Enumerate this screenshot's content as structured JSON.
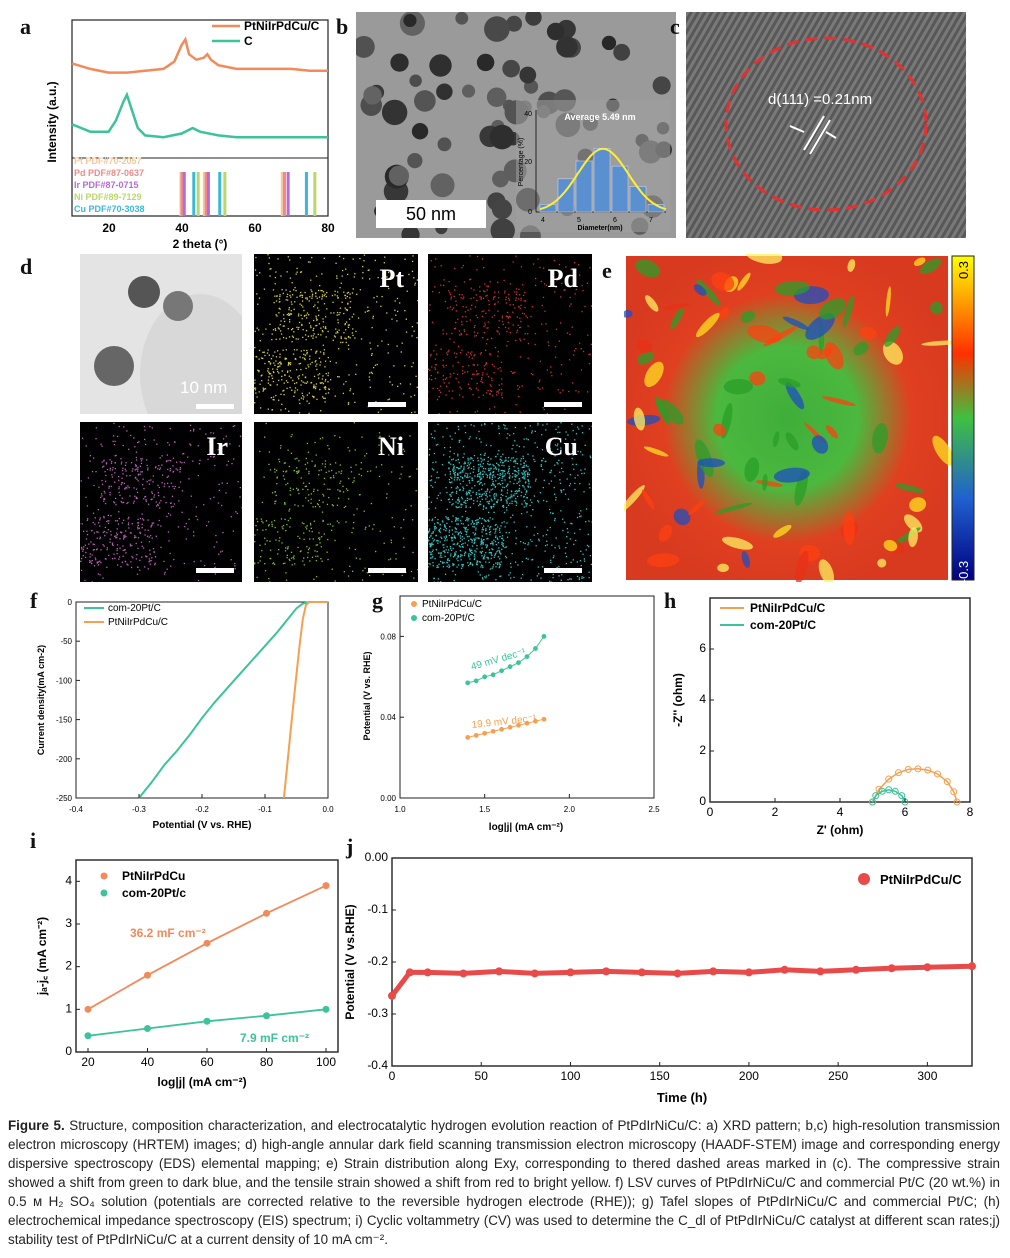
{
  "panels": {
    "a": {
      "letter": "a",
      "legend": [
        "PtNiIrPdCu/C",
        "C"
      ],
      "ylabel": "Intensity (a.u.)",
      "xlabel": "2 theta (°)",
      "xticks": [
        "20",
        "40",
        "60",
        "80"
      ],
      "pdf_refs": [
        {
          "label": "Pt PDF#70-2057",
          "color": "#f5c89a"
        },
        {
          "label": "Pd PDF#87-0637",
          "color": "#f08a8a"
        },
        {
          "label": "Ir PDF#87-0715",
          "color": "#b56ad8"
        },
        {
          "label": "Ni PDF#89-7129",
          "color": "#b8d86a"
        },
        {
          "label": "Cu PDF#70-3038",
          "color": "#3ab8d8"
        }
      ]
    },
    "b": {
      "letter": "b",
      "scale": "50 nm",
      "inset_title": "Average 5.49 nm",
      "inset_xlabel": "Diameter(nm)",
      "inset_ylabel": "Percentage (%)",
      "inset_xticks": [
        "4",
        "5",
        "6",
        "7"
      ],
      "inset_yticks": [
        "0",
        "20",
        "40"
      ]
    },
    "c": {
      "letter": "c",
      "annotation": "d(111) =0.21nm"
    },
    "d": {
      "letter": "d",
      "scale": "10 nm",
      "elements": [
        "Pt",
        "Pd",
        "Ir",
        "Ni",
        "Cu"
      ]
    },
    "e": {
      "letter": "e",
      "cbar_top": "0.3",
      "cbar_bottom": "-0.3"
    },
    "f": {
      "letter": "f",
      "legend": [
        "com-20Pt/C",
        "PtNiIrPdCu/C"
      ],
      "xlabel": "Potential (V vs. RHE)",
      "ylabel": "Current density(mA cm-2)",
      "xticks": [
        "-0.4",
        "-0.3",
        "-0.2",
        "-0.1",
        "0.0"
      ],
      "yticks": [
        "0",
        "-50",
        "-100",
        "-150",
        "-200",
        "-250"
      ]
    },
    "g": {
      "letter": "g",
      "legend": [
        "PtNiIrPdCu/C",
        "com-20Pt/C"
      ],
      "xlabel": "log|j| (mA cm⁻²)",
      "ylabel": "Potential (V vs. RHE)",
      "xticks": [
        "1.0",
        "1.5",
        "2.0",
        "2.5"
      ],
      "yticks": [
        "0.00",
        "0.04",
        "0.08"
      ],
      "slope1": "49 mV dec⁻¹",
      "slope2": "19.9 mV dec⁻¹"
    },
    "h": {
      "letter": "h",
      "legend": [
        "PtNiIrPdCu/C",
        "com-20Pt/C"
      ],
      "xlabel": "Z' (ohm)",
      "ylabel": "-Z'' (ohm)",
      "xticks": [
        "0",
        "2",
        "4",
        "6",
        "8"
      ],
      "yticks": [
        "0",
        "2",
        "4",
        "6"
      ]
    },
    "i": {
      "letter": "i",
      "legend": [
        "PtNiIrPdCu",
        "com-20Pt/c"
      ],
      "xlabel": "log|j| (mA cm⁻²)",
      "ylabel": "jₐ-j꜀ (mA cm⁻²)",
      "xticks": [
        "20",
        "40",
        "60",
        "80",
        "100"
      ],
      "yticks": [
        "0",
        "1",
        "2",
        "3",
        "4"
      ],
      "cap1": "36.2 mF cm⁻²",
      "cap2": "7.9 mF cm⁻²"
    },
    "j": {
      "letter": "j",
      "legend": [
        "PtNiIrPdCu/C"
      ],
      "xlabel": "Time (h)",
      "ylabel": "Potential (V vs.RHE)",
      "xticks": [
        "0",
        "50",
        "100",
        "150",
        "200",
        "250",
        "300"
      ],
      "yticks": [
        "0.00",
        "-0.1",
        "-0.2",
        "-0.3",
        "-0.4"
      ]
    }
  },
  "chart_data": [
    {
      "panel": "a",
      "type": "line",
      "title": "XRD pattern",
      "xlabel": "2 theta (°)",
      "ylabel": "Intensity (a.u.)",
      "xlim": [
        10,
        80
      ],
      "series": [
        {
          "name": "PtNiIrPdCu/C",
          "color": "#f28a5a",
          "x": [
            10,
            15,
            20,
            25,
            30,
            35,
            38,
            40,
            41,
            42,
            44,
            46,
            47,
            48,
            50,
            55,
            60,
            65,
            70,
            75,
            80
          ],
          "y": [
            0.83,
            0.8,
            0.78,
            0.78,
            0.79,
            0.8,
            0.84,
            0.93,
            0.96,
            0.88,
            0.85,
            0.86,
            0.88,
            0.85,
            0.82,
            0.8,
            0.8,
            0.8,
            0.8,
            0.79,
            0.79
          ]
        },
        {
          "name": "C",
          "color": "#3cc39a",
          "x": [
            10,
            15,
            20,
            22,
            24,
            25,
            26,
            28,
            30,
            35,
            40,
            43,
            45,
            50,
            55,
            60,
            65,
            70,
            75,
            80
          ],
          "y": [
            0.5,
            0.46,
            0.46,
            0.52,
            0.62,
            0.66,
            0.6,
            0.48,
            0.44,
            0.43,
            0.45,
            0.48,
            0.46,
            0.44,
            0.43,
            0.43,
            0.43,
            0.43,
            0.43,
            0.43
          ]
        }
      ],
      "reference_lines": [
        {
          "name": "Pt",
          "color": "#f5c89a",
          "positions": [
            39.8,
            46.2,
            67.5,
            81.3
          ]
        },
        {
          "name": "Pd",
          "color": "#f08a8a",
          "positions": [
            40.1,
            46.7,
            68.1,
            82.1
          ]
        },
        {
          "name": "Ir",
          "color": "#b56ad8",
          "positions": [
            40.7,
            47.3,
            69.1
          ]
        },
        {
          "name": "Ni",
          "color": "#b8d86a",
          "positions": [
            44.5,
            51.8,
            76.4
          ]
        },
        {
          "name": "Cu",
          "color": "#3ab8d8",
          "positions": [
            43.3,
            50.4,
            74.1
          ]
        }
      ]
    },
    {
      "panel": "b-inset",
      "type": "bar",
      "title": "Average 5.49 nm",
      "xlabel": "Diameter(nm)",
      "ylabel": "Percentage (%)",
      "categories": [
        "4.0",
        "4.5",
        "5.0",
        "5.5",
        "6.0",
        "6.5",
        "7.0"
      ],
      "values": [
        3,
        13,
        20,
        25,
        18,
        10,
        3
      ],
      "ylim": [
        0,
        40
      ]
    },
    {
      "panel": "f",
      "type": "line",
      "title": "LSV",
      "xlabel": "Potential (V vs. RHE)",
      "ylabel": "Current density(mA cm-2)",
      "xlim": [
        -0.4,
        0.0
      ],
      "ylim": [
        -250,
        0
      ],
      "series": [
        {
          "name": "com-20Pt/C",
          "color": "#3cc39a",
          "x": [
            -0.3,
            -0.28,
            -0.26,
            -0.24,
            -0.22,
            -0.2,
            -0.18,
            -0.16,
            -0.14,
            -0.12,
            -0.1,
            -0.08,
            -0.06,
            -0.05,
            -0.04,
            -0.03,
            0.0
          ],
          "y": [
            -250,
            -230,
            -208,
            -190,
            -170,
            -148,
            -128,
            -110,
            -92,
            -74,
            -56,
            -38,
            -18,
            -8,
            -2,
            0,
            0
          ]
        },
        {
          "name": "PtNiIrPdCu/C",
          "color": "#f5a050",
          "x": [
            -0.07,
            -0.065,
            -0.06,
            -0.055,
            -0.05,
            -0.045,
            -0.04,
            -0.035,
            -0.03,
            0.0
          ],
          "y": [
            -250,
            -210,
            -170,
            -130,
            -92,
            -55,
            -22,
            -4,
            0,
            0
          ]
        }
      ]
    },
    {
      "panel": "g",
      "type": "scatter",
      "title": "Tafel slopes",
      "xlabel": "log|j| (mA cm⁻²)",
      "ylabel": "Potential (V vs. RHE)",
      "xlim": [
        1.0,
        2.5
      ],
      "ylim": [
        0.0,
        0.1
      ],
      "series": [
        {
          "name": "PtNiIrPdCu/C",
          "color": "#f5a050",
          "x": [
            1.4,
            1.45,
            1.5,
            1.55,
            1.6,
            1.65,
            1.7,
            1.75,
            1.8,
            1.85
          ],
          "y": [
            0.03,
            0.031,
            0.032,
            0.033,
            0.034,
            0.035,
            0.036,
            0.037,
            0.038,
            0.039
          ]
        },
        {
          "name": "com-20Pt/C",
          "color": "#3cc39a",
          "x": [
            1.4,
            1.45,
            1.5,
            1.55,
            1.6,
            1.65,
            1.7,
            1.75,
            1.8,
            1.85
          ],
          "y": [
            0.057,
            0.058,
            0.06,
            0.061,
            0.063,
            0.065,
            0.067,
            0.07,
            0.074,
            0.08
          ]
        }
      ]
    },
    {
      "panel": "h",
      "type": "scatter",
      "title": "EIS",
      "xlabel": "Z' (ohm)",
      "ylabel": "-Z'' (ohm)",
      "xlim": [
        0,
        8
      ],
      "ylim": [
        0,
        8
      ],
      "series": [
        {
          "name": "PtNiIrPdCu/C",
          "color": "#f5a050",
          "x": [
            5.0,
            5.2,
            5.5,
            5.8,
            6.1,
            6.4,
            6.7,
            7.0,
            7.3,
            7.5,
            7.6
          ],
          "y": [
            0.0,
            0.5,
            0.9,
            1.15,
            1.28,
            1.3,
            1.25,
            1.1,
            0.8,
            0.4,
            0.0
          ]
        },
        {
          "name": "com-20Pt/C",
          "color": "#3cc39a",
          "x": [
            5.0,
            5.1,
            5.3,
            5.5,
            5.7,
            5.9,
            6.0
          ],
          "y": [
            0.0,
            0.25,
            0.42,
            0.48,
            0.42,
            0.25,
            0.0
          ]
        }
      ]
    },
    {
      "panel": "i",
      "type": "line",
      "title": "CV capacitance",
      "xlabel": "log|j| (mA cm⁻²)",
      "ylabel": "jₐ-j꜀ (mA cm⁻²)",
      "xlim": [
        20,
        100
      ],
      "ylim": [
        0,
        4
      ],
      "series": [
        {
          "name": "PtNiIrPdCu",
          "color": "#f28a5a",
          "x": [
            20,
            40,
            60,
            80,
            100
          ],
          "y": [
            1.0,
            1.8,
            2.55,
            3.25,
            3.9
          ]
        },
        {
          "name": "com-20Pt/c",
          "color": "#3cc39a",
          "x": [
            20,
            40,
            60,
            80,
            100
          ],
          "y": [
            0.38,
            0.55,
            0.72,
            0.85,
            1.0
          ]
        }
      ]
    },
    {
      "panel": "j",
      "type": "line",
      "title": "Stability test",
      "xlabel": "Time (h)",
      "ylabel": "Potential (V vs.RHE)",
      "xlim": [
        0,
        325
      ],
      "ylim": [
        -0.4,
        0.0
      ],
      "series": [
        {
          "name": "PtNiIrPdCu/C",
          "color": "#e84a4a",
          "x": [
            0,
            10,
            20,
            40,
            60,
            80,
            100,
            120,
            140,
            160,
            180,
            200,
            220,
            240,
            260,
            280,
            300,
            325
          ],
          "y": [
            -0.265,
            -0.22,
            -0.22,
            -0.222,
            -0.218,
            -0.222,
            -0.22,
            -0.218,
            -0.22,
            -0.222,
            -0.218,
            -0.22,
            -0.215,
            -0.218,
            -0.215,
            -0.212,
            -0.21,
            -0.208
          ]
        }
      ]
    }
  ],
  "caption": {
    "label": "Figure 5.",
    "text": "Structure, composition characterization, and electrocatalytic hydrogen evolution reaction of PtPdIrNiCu/C: a) XRD pattern; b,c) high-resolution transmission electron microscopy (HRTEM) images; d) high-angle annular dark field scanning transmission electron microscopy (HAADF-STEM) image and corresponding energy dispersive spectroscopy (EDS) elemental mapping; e) Strain distribution along Exy, corresponding to thered dashed areas marked in (c). The compressive strain showed a shift from green to dark blue, and the tensile strain showed a shift from red to bright yellow. f) LSV curves of PtPdIrNiCu/C and commercial Pt/C (20 wt.%) in 0.5 ᴍ H₂ SO₄ solution (potentials are corrected relative to the reversible hydrogen electrode (RHE)); g) Tafel slopes of PtPdIrNiCu/C and commercial Pt/C; (h) electrochemical impedance spectroscopy (EIS) spectrum; i) Cyclic voltammetry (CV) was used to determine the C_dl of PtPdIrNiCu/C catalyst at different scan rates;j) stability test of PtPdIrNiCu/C at a current density of 10 mA cm⁻²."
  }
}
